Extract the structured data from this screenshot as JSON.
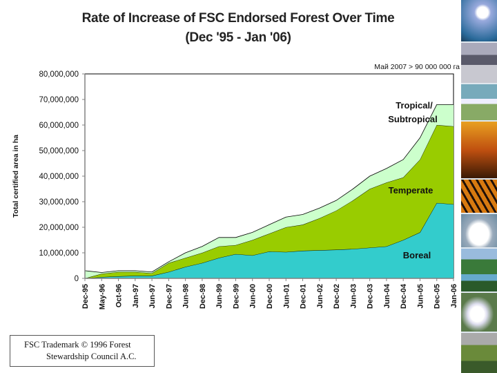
{
  "page": {
    "title_line1": "Rate of Increase of FSC Endorsed Forest Over Time",
    "title_line2": "(Dec '95 - Jan '06)",
    "trademark_line1": "FSC Trademark © 1996 Forest",
    "trademark_line2": "Stewardship Council A.C."
  },
  "chart_data": {
    "type": "area",
    "stacked": true,
    "ylabel": "Total certified area in ha",
    "ylim": [
      0,
      80000000
    ],
    "yticks": [
      0,
      10000000,
      20000000,
      30000000,
      40000000,
      50000000,
      60000000,
      70000000,
      80000000
    ],
    "ytick_labels": [
      "0",
      "10,000,000",
      "20,000,000",
      "30,000,000",
      "40,000,000",
      "50,000,000",
      "60,000,000",
      "70,000,000",
      "80,000,000"
    ],
    "categories": [
      "Dec-95",
      "May-96",
      "Oct-96",
      "Jan-97",
      "Jun-97",
      "Dec-97",
      "Jun-98",
      "Dec-98",
      "Jun-99",
      "Dec-99",
      "Jun-00",
      "Dec-00",
      "Jun-01",
      "Dec-01",
      "Jun-02",
      "Dec-02",
      "Jun-03",
      "Dec-03",
      "Jun-04",
      "Dec-04",
      "Jun-05",
      "Dec-05",
      "Jan-06"
    ],
    "series": [
      {
        "name": "Boreal",
        "color": "#33cccc",
        "values": [
          0,
          500000,
          800000,
          1000000,
          1000000,
          2500000,
          4500000,
          6000000,
          8000000,
          9500000,
          9000000,
          10500000,
          10300000,
          10800000,
          11000000,
          11200000,
          11500000,
          12000000,
          12500000,
          15000000,
          18000000,
          29500000,
          29000000
        ]
      },
      {
        "name": "Temperate",
        "color": "#99cc00",
        "values": [
          0,
          1300000,
          1700000,
          1500000,
          1000000,
          3500000,
          3500000,
          4000000,
          4500000,
          3500000,
          6000000,
          7000000,
          9700000,
          10200000,
          12500000,
          15300000,
          19000000,
          23000000,
          25000000,
          24500000,
          28500000,
          30500000,
          30500000
        ]
      },
      {
        "name": "Tropical/ Subtropical",
        "color": "#ccffcc",
        "values": [
          3000000,
          500000,
          500000,
          500000,
          500000,
          500000,
          2000000,
          2500000,
          3500000,
          3000000,
          3000000,
          3500000,
          4000000,
          4000000,
          4000000,
          4000000,
          4500000,
          5000000,
          5500000,
          7000000,
          8500000,
          8000000,
          8500000
        ]
      }
    ],
    "annotation": "Май 2007 > 90 000 000 га",
    "colors": {
      "plot_border": "#000000",
      "axis": "#808080",
      "outline": "#000000"
    }
  }
}
